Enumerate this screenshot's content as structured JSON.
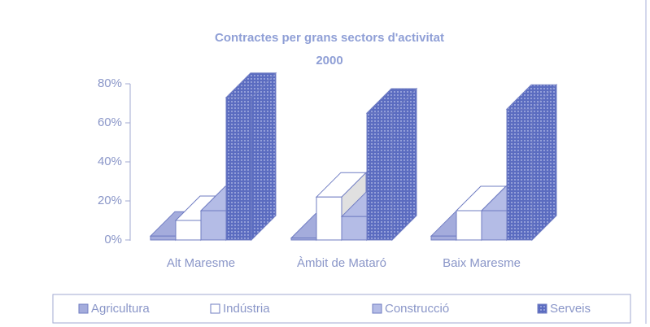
{
  "chart_data": {
    "type": "bar3d",
    "title": "Contractes per grans sectors d'activitat",
    "subtitle": "2000",
    "categories": [
      "Alt Maresme",
      "Àmbit de Mataró",
      "Baix Maresme"
    ],
    "series": [
      {
        "name": "Agricultura",
        "color": "#a4acdc",
        "values": [
          2,
          1,
          2
        ]
      },
      {
        "name": "Indústria",
        "color": "#ffffff",
        "values": [
          10,
          22,
          15
        ]
      },
      {
        "name": "Construcció",
        "color": "#b4bce6",
        "values": [
          15,
          12,
          15
        ]
      },
      {
        "name": "Serveis",
        "color": "#5b6cc0",
        "values": [
          73,
          65,
          67
        ]
      }
    ],
    "ylim": [
      0,
      80
    ],
    "yticks": [
      {
        "value": 0,
        "label": "0%"
      },
      {
        "value": 20,
        "label": "20%"
      },
      {
        "value": 40,
        "label": "40%"
      },
      {
        "value": 60,
        "label": "60%"
      },
      {
        "value": 80,
        "label": "80%"
      }
    ],
    "legend": "bottom"
  }
}
